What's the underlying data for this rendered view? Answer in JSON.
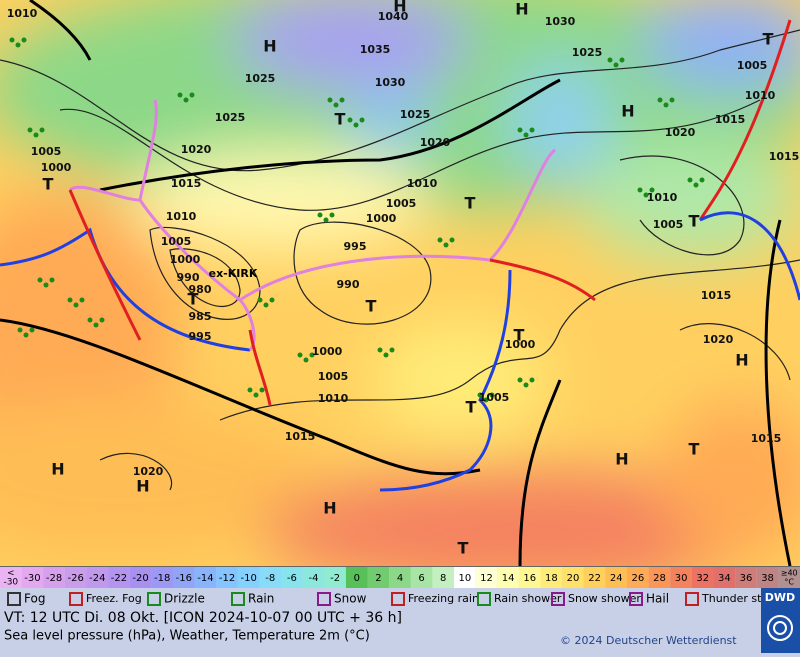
{
  "map": {
    "pressure_labels": [
      "1010",
      "1040",
      "1030",
      "1025",
      "1035",
      "1030",
      "1025",
      "1025",
      "1025",
      "1020",
      "1020",
      "1005",
      "1000",
      "1015",
      "1010",
      "1005",
      "1000",
      "1010",
      "995",
      "1005",
      "1000",
      "990",
      "980",
      "985",
      "995",
      "990",
      "1000",
      "1005",
      "1010",
      "1015",
      "1020",
      "1000",
      "1005",
      "1010",
      "1015",
      "1020",
      "1005",
      "1010",
      "1005",
      "1015",
      "1020",
      "1015",
      "1015"
    ],
    "centers": [
      "H",
      "H",
      "H",
      "T",
      "T",
      "H",
      "T",
      "T",
      "T",
      "T",
      "T",
      "H",
      "T",
      "H",
      "T",
      "H",
      "H",
      "H",
      "T",
      "T"
    ],
    "storm_name": "ex-KIRK"
  },
  "temperature_scale": {
    "below_sign": "<",
    "below_value": -30,
    "values": [
      -30,
      -28,
      -26,
      -24,
      -22,
      -20,
      -18,
      -16,
      -14,
      -12,
      -10,
      -8,
      -6,
      -4,
      -2,
      0,
      2,
      4,
      6,
      8,
      10,
      12,
      14,
      16,
      18,
      20,
      22,
      24,
      26,
      28,
      30,
      32,
      34,
      36,
      38
    ],
    "colors": [
      "#e4a8f0",
      "#d8a0ec",
      "#cc9cec",
      "#c098ec",
      "#b494ee",
      "#a890f0",
      "#9c98f4",
      "#90a4f8",
      "#88b4fc",
      "#84c4ff",
      "#84d0ff",
      "#88dcf8",
      "#88e4ec",
      "#8ce8dc",
      "#90ecd0",
      "#58c058",
      "#70cc6c",
      "#8cd888",
      "#a8e4a4",
      "#c4f0c0",
      "#ffffff",
      "#ffffd4",
      "#ffffb0",
      "#fff890",
      "#ffec78",
      "#ffe068",
      "#ffd05c",
      "#ffbe54",
      "#ffaa54",
      "#fc9658",
      "#f4825c",
      "#ec7264",
      "#e0706c",
      "#d07c78",
      "#c08484"
    ],
    "above_sign": "≥40",
    "above_unit": "°C",
    "above_color": "#b09090",
    "below_color": "#eab4f4"
  },
  "weather_legend": [
    "Fog",
    "Freez. Fog",
    "Drizzle",
    "Rain",
    "Snow",
    "Freezing rain",
    "Rain shower",
    "Snow shower",
    "Hail",
    "Thunder storm"
  ],
  "footer": {
    "valid_time": "VT: 12 UTC Di.  08 Okt. [ICON 2024-10-07  00 UTC + 36 h]",
    "description": "Sea level pressure (hPa), Weather, Temperature 2m (°C)",
    "copyright": "© 2024 Deutscher Wetterdienst",
    "logo": "DWD"
  }
}
